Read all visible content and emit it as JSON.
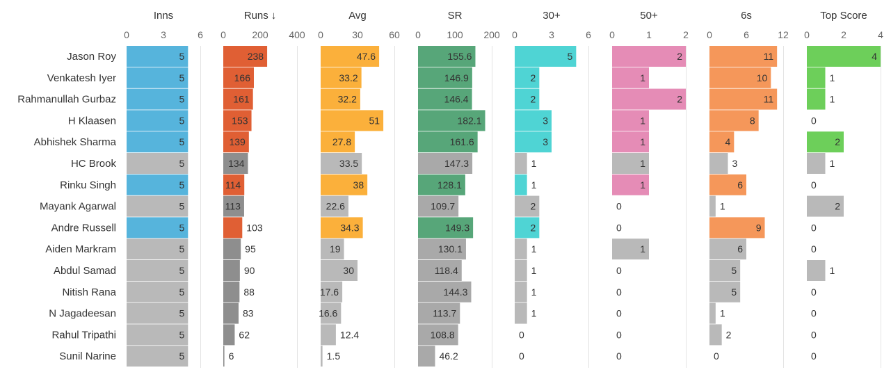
{
  "chart_data": {
    "type": "bar",
    "layout": "small-multiples-horizontal",
    "sorted_by": "Runs",
    "sort_indicator": "↓",
    "highlight_note": "",
    "players": [
      "Jason Roy",
      "Venkatesh Iyer",
      "Rahmanullah Gurbaz",
      "H Klaasen",
      "Abhishek Sharma",
      "HC Brook",
      "Rinku Singh",
      "Mayank Agarwal",
      "Andre Russell",
      "Aiden Markram",
      "Abdul Samad",
      "Nitish Rana",
      "N Jagadeesan",
      "Rahul Tripathi",
      "Sunil Narine"
    ],
    "highlighted": [
      true,
      true,
      true,
      true,
      true,
      false,
      true,
      false,
      true,
      false,
      false,
      false,
      false,
      false,
      false
    ],
    "columns": [
      {
        "label": "Inns",
        "arrow": "",
        "max": 6,
        "ticks": [
          0,
          3,
          6
        ],
        "color": "#56b4dc",
        "values": [
          "5",
          "5",
          "5",
          "5",
          "5",
          "5",
          "5",
          "5",
          "5",
          "5",
          "5",
          "5",
          "5",
          "5",
          "5"
        ]
      },
      {
        "label": "Runs",
        "arrow": "↓",
        "max": 400,
        "ticks": [
          0,
          200,
          400
        ],
        "color": "#e05f34",
        "gray": "#8e8e8e",
        "values": [
          "238",
          "166",
          "161",
          "153",
          "139",
          "134",
          "114",
          "113",
          "103",
          "95",
          "90",
          "88",
          "83",
          "62",
          "6"
        ]
      },
      {
        "label": "Avg",
        "arrow": "",
        "max": 60,
        "ticks": [
          0,
          30,
          60
        ],
        "color": "#fbb03b",
        "values": [
          "47.6",
          "33.2",
          "32.2",
          "51",
          "27.8",
          "33.5",
          "38",
          "22.6",
          "34.3",
          "19",
          "30",
          "17.6",
          "16.6",
          "12.4",
          "1.5"
        ]
      },
      {
        "label": "SR",
        "arrow": "",
        "max": 200,
        "ticks": [
          0,
          100,
          200
        ],
        "color": "#57a679",
        "gray": "#a9a9a9",
        "values": [
          "155.6",
          "146.9",
          "146.4",
          "182.1",
          "161.6",
          "147.3",
          "128.1",
          "109.7",
          "149.3",
          "130.1",
          "118.4",
          "144.3",
          "113.7",
          "108.8",
          "46.2"
        ]
      },
      {
        "label": "30+",
        "arrow": "",
        "max": 6,
        "ticks": [
          0,
          3,
          6
        ],
        "color": "#4fd4d4",
        "values": [
          "5",
          "2",
          "2",
          "3",
          "3",
          "1",
          "1",
          "2",
          "2",
          "1",
          "1",
          "1",
          "1",
          "0",
          "0"
        ]
      },
      {
        "label": "50+",
        "arrow": "",
        "max": 2,
        "ticks": [
          0,
          1,
          2
        ],
        "color": "#e58cb6",
        "values": [
          "2",
          "1",
          "2",
          "1",
          "1",
          "1",
          "1",
          "0",
          "0",
          "1",
          "0",
          "0",
          "0",
          "0",
          "0"
        ]
      },
      {
        "label": "6s",
        "arrow": "",
        "max": 12,
        "ticks": [
          0,
          6,
          12
        ],
        "color": "#f5975a",
        "values": [
          "11",
          "10",
          "11",
          "8",
          "4",
          "3",
          "6",
          "1",
          "9",
          "6",
          "5",
          "5",
          "1",
          "2",
          "0"
        ]
      },
      {
        "label": "Top Score",
        "arrow": "",
        "max": 4,
        "ticks": [
          0,
          2,
          4
        ],
        "color": "#6dcf5a",
        "values": [
          "4",
          "1",
          "1",
          "0",
          "2",
          "1",
          "0",
          "2",
          "0",
          "0",
          "1",
          "0",
          "0",
          "0",
          "0"
        ]
      }
    ]
  }
}
